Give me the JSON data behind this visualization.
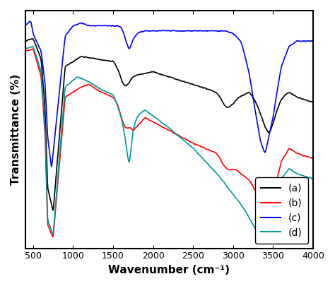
{
  "xlabel": "Wavenumber (cm⁻¹)",
  "ylabel": "Transmittance (%)",
  "xlim": [
    400,
    4000
  ],
  "legend_labels": [
    "(a)",
    "(b)",
    "(c)",
    "(d)"
  ],
  "colors": [
    "black",
    "red",
    "blue",
    "#009999"
  ],
  "background": "white"
}
